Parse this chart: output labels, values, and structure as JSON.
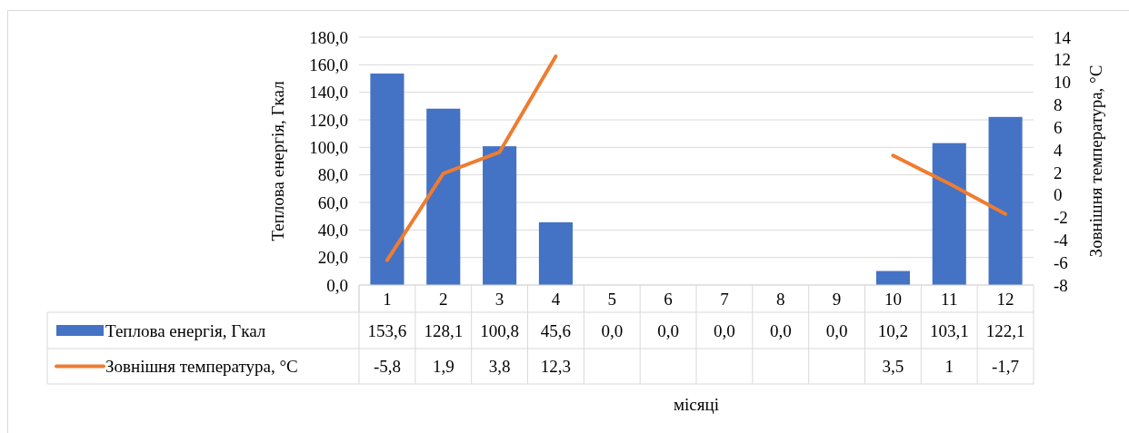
{
  "chart_data": {
    "type": "bar",
    "xlabel": "місяці",
    "ylabel": "Теплова енергія, Гкал",
    "y2label": "Зовнішня температура, °C",
    "categories": [
      "1",
      "2",
      "3",
      "4",
      "5",
      "6",
      "7",
      "8",
      "9",
      "10",
      "11",
      "12"
    ],
    "series": [
      {
        "name": "Теплова енергія, Гкал",
        "color": "#4472c4",
        "values": [
          153.6,
          128.1,
          100.8,
          45.6,
          0,
          0,
          0,
          0,
          0,
          10.2,
          103.1,
          122.1
        ],
        "value_labels": [
          "153,6",
          "128,1",
          "100,8",
          "45,6",
          "0,0",
          "0,0",
          "0,0",
          "0,0",
          "0,0",
          "10,2",
          "103,1",
          "122,1"
        ]
      },
      {
        "name": "Зовнішня температура, °C",
        "type": "line",
        "axis": "y2",
        "color": "#ed7d31",
        "values": [
          -5.8,
          1.9,
          3.8,
          12.3,
          null,
          null,
          null,
          null,
          null,
          3.5,
          1,
          -1.7
        ],
        "value_labels": [
          "-5,8",
          "1,9",
          "3,8",
          "12,3",
          null,
          null,
          null,
          null,
          null,
          "3,5",
          "1",
          "-1,7"
        ]
      }
    ],
    "ylim": [
      0,
      180
    ],
    "yticks": [
      {
        "value": 0,
        "label": "0,0"
      },
      {
        "value": 20,
        "label": "20,0"
      },
      {
        "value": 40,
        "label": "40,0"
      },
      {
        "value": 60,
        "label": "60,0"
      },
      {
        "value": 80,
        "label": "80,0"
      },
      {
        "value": 100,
        "label": "100,0"
      },
      {
        "value": 120,
        "label": "120,0"
      },
      {
        "value": 140,
        "label": "140,0"
      },
      {
        "value": 160,
        "label": "160,0"
      },
      {
        "value": 180,
        "label": "180,0"
      }
    ],
    "y2lim": [
      -8,
      14
    ],
    "y2ticks": [
      -8,
      -6,
      -4,
      -2,
      0,
      2,
      4,
      6,
      8,
      10,
      12,
      14
    ],
    "grid": "y",
    "legend": "bottom",
    "marker": "none",
    "line_style": "solid"
  }
}
